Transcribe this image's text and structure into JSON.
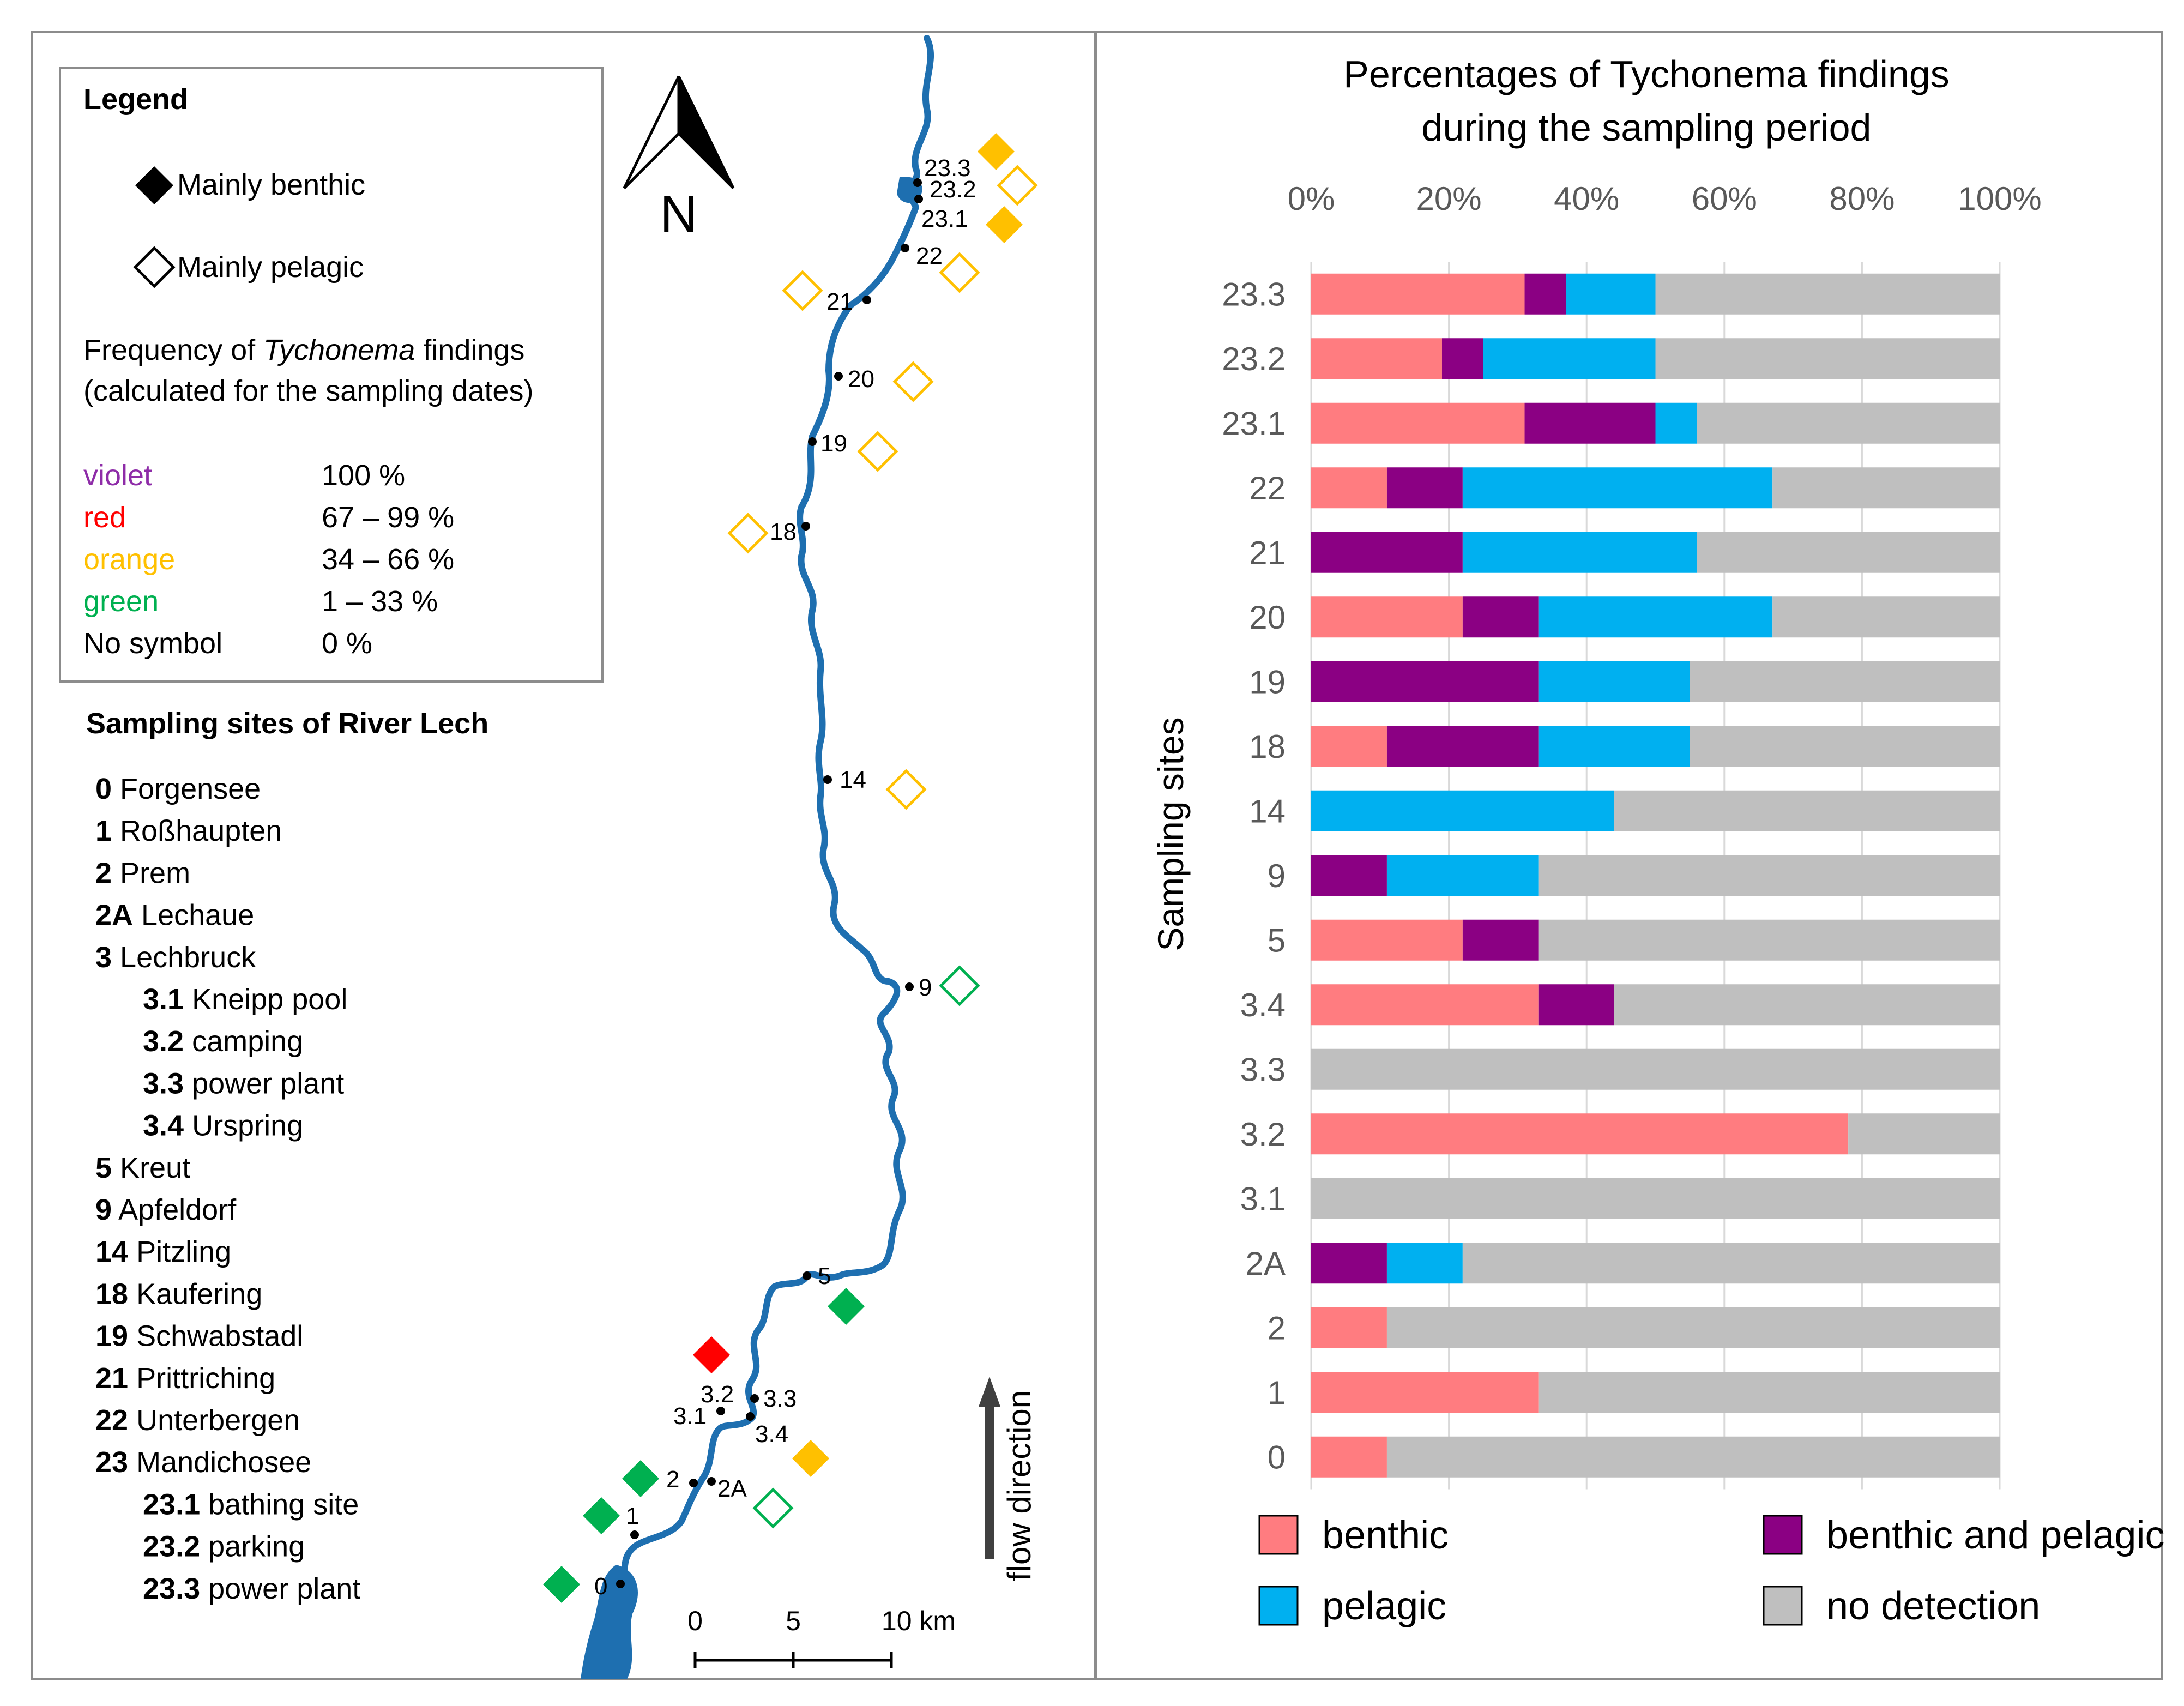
{
  "legend": {
    "title": "Legend",
    "benthic_label": "Mainly benthic",
    "pelagic_label": "Mainly pelagic",
    "freq_line1_pre": "Frequency of ",
    "freq_line1_em": "Tychonema",
    "freq_line1_post": " findings",
    "freq_line2": "(calculated for the sampling dates)",
    "frequency_classes": [
      {
        "name": "violet",
        "range": "100 %",
        "color": "#8e2ca8"
      },
      {
        "name": "red",
        "range": "67 – 99 %",
        "color": "#ff0000"
      },
      {
        "name": "orange",
        "range": "34 – 66 %",
        "color": "#ffc000"
      },
      {
        "name": "green",
        "range": "1 – 33 %",
        "color": "#00b050"
      },
      {
        "name": "No symbol",
        "range": "0 %",
        "color": "#000000"
      }
    ]
  },
  "sites_list": {
    "title": "Sampling sites of River Lech",
    "items": [
      {
        "code": "0",
        "name": "Forgensee",
        "sub": false
      },
      {
        "code": "1",
        "name": "Roßhaupten",
        "sub": false
      },
      {
        "code": "2",
        "name": "Prem",
        "sub": false
      },
      {
        "code": "2A",
        "name": "Lechaue",
        "sub": false
      },
      {
        "code": "3",
        "name": "Lechbruck",
        "sub": false
      },
      {
        "code": "3.1",
        "name": "Kneipp pool",
        "sub": true
      },
      {
        "code": "3.2",
        "name": "camping",
        "sub": true
      },
      {
        "code": "3.3",
        "name": "power plant",
        "sub": true
      },
      {
        "code": "3.4",
        "name": "Urspring",
        "sub": true
      },
      {
        "code": "5",
        "name": "Kreut",
        "sub": false
      },
      {
        "code": "9",
        "name": "Apfeldorf",
        "sub": false
      },
      {
        "code": "14",
        "name": "Pitzling",
        "sub": false
      },
      {
        "code": "18",
        "name": "Kaufering",
        "sub": false
      },
      {
        "code": "19",
        "name": "Schwabstadl",
        "sub": false
      },
      {
        "code": "21",
        "name": "Prittriching",
        "sub": false
      },
      {
        "code": "22",
        "name": "Unterbergen",
        "sub": false
      },
      {
        "code": "23",
        "name": "Mandichosee",
        "sub": false
      },
      {
        "code": "23.1",
        "name": "bathing site",
        "sub": true
      },
      {
        "code": "23.2",
        "name": "parking",
        "sub": true
      },
      {
        "code": "23.3",
        "name": "power plant",
        "sub": true
      }
    ]
  },
  "map": {
    "north_label": "N",
    "flow_label": "flow direction",
    "scale_ticks": [
      "0",
      "5",
      "10 km"
    ],
    "markers": [
      {
        "site": "23.3",
        "type": "benthic",
        "color": "#ffc000"
      },
      {
        "site": "23.2",
        "type": "pelagic",
        "color": "#ffc000"
      },
      {
        "site": "23.1",
        "type": "benthic",
        "color": "#ffc000"
      },
      {
        "site": "22",
        "type": "pelagic",
        "color": "#ffc000"
      },
      {
        "site": "21",
        "type": "pelagic",
        "color": "#ffc000"
      },
      {
        "site": "20",
        "type": "pelagic",
        "color": "#ffc000"
      },
      {
        "site": "19",
        "type": "pelagic",
        "color": "#ffc000"
      },
      {
        "site": "18",
        "type": "pelagic",
        "color": "#ffc000"
      },
      {
        "site": "14",
        "type": "pelagic",
        "color": "#ffc000"
      },
      {
        "site": "9",
        "type": "pelagic",
        "color": "#00b050"
      },
      {
        "site": "5",
        "type": "benthic",
        "color": "#00b050"
      },
      {
        "site": "3.2",
        "type": "benthic",
        "color": "#ff0000"
      },
      {
        "site": "3.4",
        "type": "benthic",
        "color": "#ffc000"
      },
      {
        "site": "2A",
        "type": "pelagic",
        "color": "#00b050"
      },
      {
        "site": "2",
        "type": "benthic",
        "color": "#00b050"
      },
      {
        "site": "1",
        "type": "benthic",
        "color": "#00b050"
      },
      {
        "site": "0",
        "type": "benthic",
        "color": "#00b050"
      }
    ]
  },
  "chart_data": {
    "type": "bar",
    "orientation": "horizontal-stacked-100",
    "title": "Percentages of Tychonema findings during the sampling period",
    "title_line1": "Percentages of Tychonema findings",
    "title_line2": "during the sampling period",
    "ylabel": "Sampling sites",
    "xlabel": "",
    "xlim": [
      0,
      100
    ],
    "x_ticks": [
      "0%",
      "20%",
      "40%",
      "60%",
      "80%",
      "100%"
    ],
    "categories": [
      "23.3",
      "23.2",
      "23.1",
      "22",
      "21",
      "20",
      "19",
      "18",
      "14",
      "9",
      "5",
      "3.4",
      "3.3",
      "3.2",
      "3.1",
      "2A",
      "2",
      "1",
      "0"
    ],
    "series": [
      {
        "name": "benthic",
        "color": "#ff7c80",
        "values": [
          31,
          19,
          31,
          11,
          0,
          22,
          0,
          11,
          0,
          0,
          22,
          33,
          0,
          78,
          0,
          0,
          11,
          33,
          11
        ]
      },
      {
        "name": "benthic and pelagic",
        "color": "#8b0083",
        "values": [
          6,
          6,
          19,
          11,
          22,
          11,
          33,
          22,
          0,
          11,
          11,
          11,
          0,
          0,
          0,
          11,
          0,
          0,
          0
        ]
      },
      {
        "name": "pelagic",
        "color": "#00b0f0",
        "values": [
          13,
          25,
          6,
          45,
          34,
          34,
          22,
          22,
          44,
          22,
          0,
          0,
          0,
          0,
          0,
          11,
          0,
          0,
          0
        ]
      },
      {
        "name": "no detection",
        "color": "#bfbfbf",
        "values": [
          50,
          50,
          44,
          33,
          44,
          33,
          45,
          45,
          56,
          67,
          67,
          56,
          100,
          22,
          100,
          78,
          89,
          67,
          89
        ]
      }
    ],
    "legend_position": "bottom"
  }
}
